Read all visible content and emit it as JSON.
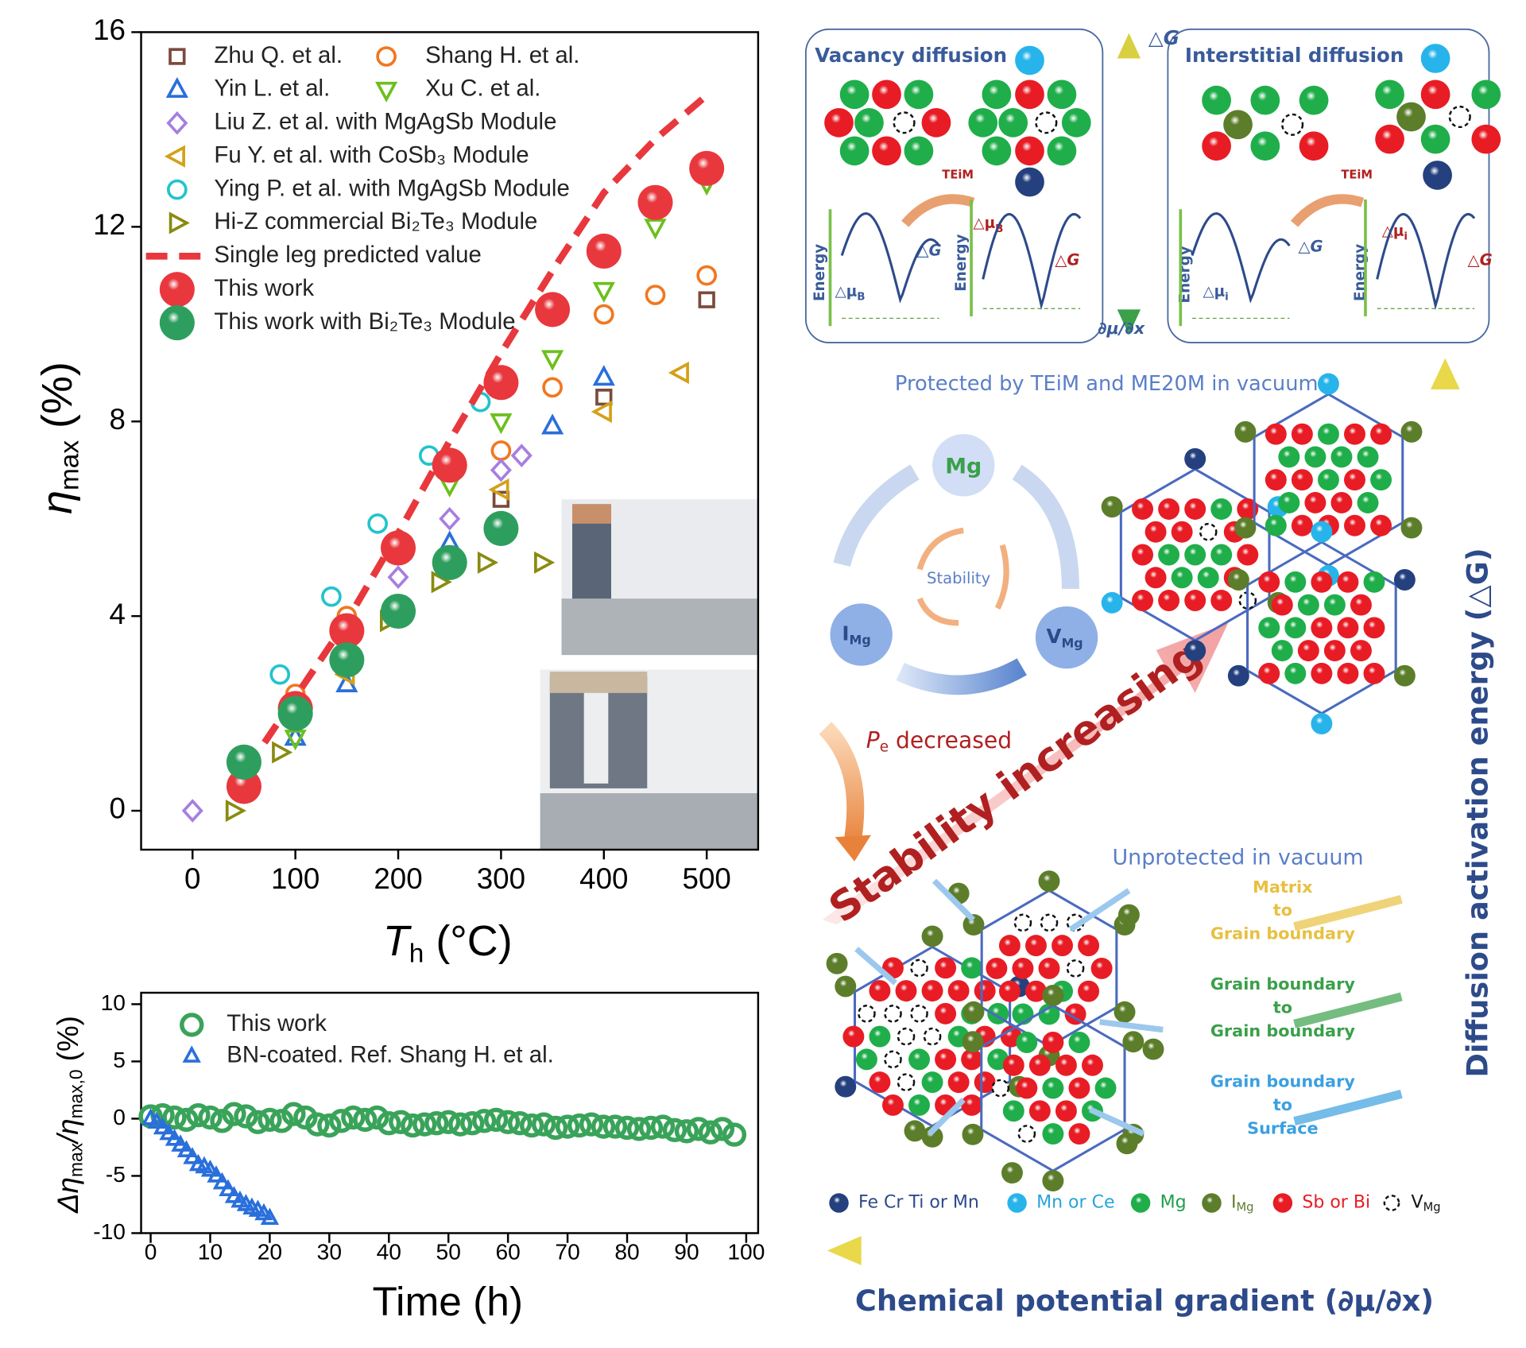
{
  "chart_data": [
    {
      "type": "scatter",
      "xlabel": [
        "T",
        "h",
        " (°C)"
      ],
      "ylabel": [
        "η",
        "max",
        " (%)"
      ],
      "xlim": [
        -50,
        550
      ],
      "xticks": [
        0,
        100,
        200,
        300,
        400,
        500
      ],
      "ylim": [
        -0.8,
        16
      ],
      "yticks": [
        0,
        4,
        8,
        12,
        16
      ],
      "series": [
        {
          "name": "Zhu Q. et al.",
          "color": "#7b4a3c",
          "marker": "square",
          "x": [
            300,
            400,
            500
          ],
          "values": [
            6.4,
            8.5,
            10.5
          ]
        },
        {
          "name": "Yin L. et al.",
          "color": "#2a6fdb",
          "marker": "triangle-up",
          "x": [
            100,
            150,
            250,
            350,
            400
          ],
          "values": [
            1.5,
            2.6,
            5.5,
            7.9,
            8.9
          ]
        },
        {
          "name": "Shang H. et al.",
          "color": "#f07820",
          "marker": "circle",
          "x": [
            50,
            100,
            150,
            300,
            350,
            400,
            450,
            500
          ],
          "values": [
            1.1,
            2.4,
            4.0,
            7.4,
            8.7,
            10.2,
            10.6,
            11.0
          ]
        },
        {
          "name": "Xu C. et al.",
          "color": "#6cbf1c",
          "marker": "triangle-down",
          "x": [
            50,
            100,
            150,
            250,
            300,
            350,
            400,
            450,
            500
          ],
          "values": [
            0.5,
            1.5,
            3.4,
            6.7,
            8.0,
            9.3,
            10.7,
            12.0,
            12.9
          ]
        },
        {
          "name": "Liu Z. et al.  with MgAgSb Module",
          "color": "#a77ee0",
          "marker": "diamond",
          "x": [
            0,
            200,
            250,
            300,
            320
          ],
          "values": [
            0,
            4.8,
            6.0,
            7.0,
            7.3
          ]
        },
        {
          "name": "Fu Y. et al. with CoSb₃ Module",
          "color": "#d4a017",
          "marker": "triangle-left",
          "x": [
            150,
            300,
            400,
            475
          ],
          "values": [
            2.8,
            6.6,
            8.2,
            9.0
          ]
        },
        {
          "name": "Ying P. et al. with MgAgSb Module",
          "color": "#22c4cc",
          "marker": "circle",
          "x": [
            85,
            135,
            180,
            230,
            280
          ],
          "values": [
            2.8,
            4.4,
            5.9,
            7.3,
            8.4
          ]
        },
        {
          "name": "Hi-Z commercial Bi₂Te₃ Module",
          "color": "#8a8a10",
          "marker": "triangle-right",
          "x": [
            40,
            85,
            190,
            240,
            285,
            340
          ],
          "values": [
            0,
            1.2,
            3.9,
            4.7,
            5.1,
            5.1
          ]
        },
        {
          "name": "Single leg predicted value",
          "color": "#e8383d",
          "marker": "dashed-line",
          "x": [
            70,
            150,
            200,
            250,
            300,
            350,
            400,
            450,
            500
          ],
          "values": [
            1.4,
            3.9,
            5.7,
            7.6,
            9.4,
            11.1,
            12.7,
            13.8,
            14.7
          ]
        },
        {
          "name": "This work",
          "color": "#e8383d",
          "marker": "sphere",
          "x": [
            50,
            100,
            150,
            200,
            250,
            300,
            350,
            400,
            450,
            500
          ],
          "values": [
            0.5,
            2.1,
            3.7,
            5.4,
            7.1,
            8.8,
            10.3,
            11.5,
            12.5,
            13.2
          ]
        },
        {
          "name": "This work with Bi₂Te₃ Module",
          "color": "#2e9e5e",
          "marker": "sphere",
          "x": [
            50,
            100,
            150,
            200,
            250,
            300
          ],
          "values": [
            1.0,
            2.0,
            3.1,
            4.1,
            5.1,
            5.8
          ]
        }
      ]
    },
    {
      "type": "scatter",
      "xlabel": [
        "Time (h)"
      ],
      "ylabel": [
        "Δη",
        "max",
        "/η",
        "max,0",
        " (%)"
      ],
      "xlim": [
        -1.6,
        102
      ],
      "xticks": [
        0,
        10,
        20,
        30,
        40,
        50,
        60,
        70,
        80,
        90,
        100
      ],
      "ylim": [
        -10,
        11
      ],
      "yticks": [
        -10,
        -5,
        0,
        5,
        10
      ],
      "series": [
        {
          "name": "This work",
          "color": "#3aa35a",
          "marker": "circle-big",
          "x": [
            0,
            2,
            4,
            6,
            8,
            10,
            12,
            14,
            16,
            18,
            20,
            22,
            24,
            26,
            28,
            30,
            32,
            34,
            36,
            38,
            40,
            42,
            44,
            46,
            48,
            50,
            52,
            54,
            56,
            58,
            60,
            62,
            64,
            66,
            68,
            70,
            72,
            74,
            76,
            78,
            80,
            82,
            84,
            86,
            88,
            90,
            92,
            94,
            96,
            98
          ],
          "values": [
            0.2,
            0.3,
            0.1,
            -0.1,
            0.3,
            0.1,
            -0.2,
            0.4,
            0.2,
            -0.3,
            -0.1,
            -0.2,
            0.4,
            0.1,
            -0.5,
            -0.6,
            -0.2,
            0.1,
            -0.1,
            0.1,
            -0.4,
            -0.3,
            -0.6,
            -0.5,
            -0.4,
            -0.3,
            -0.5,
            -0.4,
            -0.2,
            -0.1,
            -0.3,
            -0.4,
            -0.6,
            -0.5,
            -0.8,
            -0.7,
            -0.6,
            -0.5,
            -0.7,
            -0.7,
            -0.8,
            -0.9,
            -0.8,
            -0.7,
            -1.0,
            -1.1,
            -0.9,
            -1.2,
            -0.9,
            -1.4
          ]
        },
        {
          "name": "BN-coated. Ref.  Shang H. et al.",
          "color": "#2a6fdb",
          "marker": "triangle-up",
          "x": [
            0,
            1,
            2,
            3,
            4,
            5,
            6,
            7,
            8,
            9,
            10,
            11,
            12,
            13,
            14,
            15,
            16,
            17,
            18,
            19,
            20
          ],
          "values": [
            0,
            -0.3,
            -0.8,
            -1.3,
            -1.8,
            -2.3,
            -2.8,
            -3.4,
            -4.0,
            -4.2,
            -4.5,
            -5.0,
            -5.6,
            -6.2,
            -6.8,
            -7.2,
            -7.5,
            -7.8,
            -8.0,
            -8.3,
            -8.7
          ]
        }
      ]
    }
  ],
  "diagram": {
    "vacancy_title": "Vacancy diffusion",
    "interstitial_title": "Interstitial diffusion",
    "axis_delta_g": "△G",
    "axis_dmu_dx": "∂μ/∂x",
    "teim": [
      "TEiM",
      "TEiM"
    ],
    "energy": [
      "Energy",
      "Energy",
      "Energy",
      "Energy"
    ],
    "delta_g": [
      "△G",
      "△G",
      "△G",
      "△G"
    ],
    "delta_mu": [
      [
        "△μ",
        "B"
      ],
      [
        "△μ",
        "B"
      ],
      [
        "△μ",
        "i"
      ],
      [
        "△μ",
        "i"
      ]
    ],
    "protected": "Protected by TEiM and ME20M in vacuum",
    "cycle_mg": "Mg",
    "cycle_img": [
      "I",
      "Mg"
    ],
    "cycle_vmg": [
      "V",
      "Mg"
    ],
    "stability": "Stability",
    "pe_decreased": [
      "P",
      "e",
      "  decreased"
    ],
    "stability_increasing": "Stability increasing",
    "unprotected": "Unprotected  in vacuum",
    "paths": [
      [
        "Matrix",
        "to",
        "Grain boundary"
      ],
      [
        "Grain boundary",
        "to",
        "Grain boundary"
      ],
      [
        "Grain boundary",
        "to",
        "Surface"
      ]
    ],
    "legend": [
      [
        "Fe Cr Ti or Mn",
        ""
      ],
      [
        "Mn or Ce",
        ""
      ],
      [
        "Mg",
        ""
      ],
      [
        "I",
        "Mg"
      ],
      [
        "Sb or Bi",
        ""
      ],
      [
        "V",
        "Mg"
      ]
    ],
    "y_axis": "Diffusion activation energy (△G)",
    "x_axis": "Chemical potential gradient (∂μ/∂x)"
  }
}
